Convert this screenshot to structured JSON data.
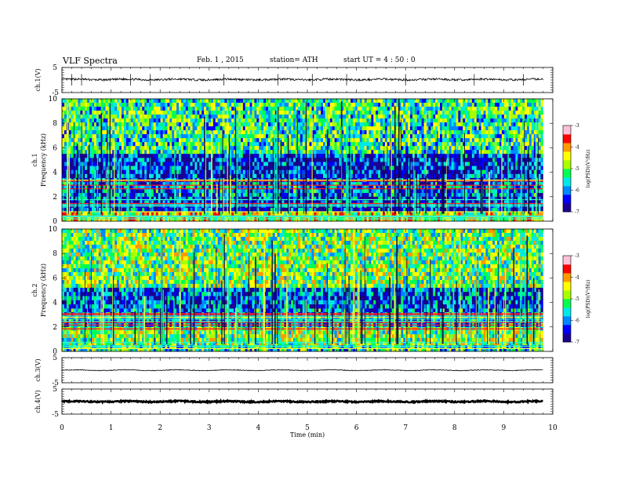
{
  "header": {
    "title": "VLF Spectra",
    "date": "Feb. 1 , 2015",
    "station": "station= ATH",
    "start_ut": "start  UT  =  4 : 50 : 0"
  },
  "colors": {
    "colormap": [
      "#1a0090",
      "#0000ff",
      "#0088ff",
      "#00e8e8",
      "#00ff50",
      "#a8ff00",
      "#ffff00",
      "#ff9900",
      "#ff0000",
      "#ffc0d8"
    ]
  },
  "chart_data": [
    {
      "type": "line",
      "panel": "ch.1",
      "ylabel": "ch.1(V)",
      "y_ticks": [
        "5",
        "-5"
      ],
      "ylim": [
        -5,
        5
      ],
      "series": [
        {
          "x_range": [
            0,
            9.8
          ],
          "baseline": 0.2,
          "noise_amplitude": 0.4,
          "spikes_min": [
            0.2,
            0.4,
            1.4,
            1.8,
            3.3,
            4.4,
            5.1,
            5.8,
            7.0,
            8.4,
            9.4
          ]
        }
      ]
    },
    {
      "type": "heatmap",
      "panel": "ch.1",
      "ylabel": "ch.1\nFrequency  (kHz)",
      "ylabel_line1": "ch.1",
      "ylabel_line2": "Frequency  (kHz)",
      "y_ticks": [
        "10",
        "8",
        "6",
        "4",
        "2",
        "0"
      ],
      "ylim": [
        0,
        10
      ],
      "xlim": [
        0,
        9.8
      ],
      "colorbar": {
        "label": "log(PSD)(V²/Hz)",
        "ticks": [
          "-3",
          "-4",
          "-5",
          "-6",
          "-7"
        ],
        "range": [
          -7,
          -3
        ]
      },
      "bands_khz": [
        {
          "from": 5.5,
          "to": 10,
          "level": -5.3
        },
        {
          "from": 3.2,
          "to": 5.5,
          "level": -6.4
        },
        {
          "from": 2.0,
          "to": 3.2,
          "level": -6.0
        },
        {
          "from": 0.8,
          "to": 2.0,
          "level": -6.3
        },
        {
          "from": 0.0,
          "to": 0.8,
          "level": -4.6
        }
      ]
    },
    {
      "type": "heatmap",
      "panel": "ch.2",
      "ylabel": "ch.2\nFrequency  (kHz)",
      "ylabel_line1": "ch.2",
      "ylabel_line2": "Frequency  (kHz)",
      "y_ticks": [
        "10",
        "8",
        "6",
        "4",
        "2",
        "0"
      ],
      "ylim": [
        0,
        10
      ],
      "xlim": [
        0,
        9.8
      ],
      "colorbar": {
        "label": "log(PSD)(V²/Hz)",
        "ticks": [
          "-3",
          "-4",
          "-5",
          "-6",
          "-7"
        ],
        "range": [
          -7,
          -3
        ]
      },
      "bands_khz": [
        {
          "from": 5.2,
          "to": 10,
          "level": -5.0
        },
        {
          "from": 3.5,
          "to": 5.2,
          "level": -6.2
        },
        {
          "from": 2.0,
          "to": 3.5,
          "level": -5.9
        },
        {
          "from": 0.5,
          "to": 2.0,
          "level": -4.9
        },
        {
          "from": 0.0,
          "to": 0.5,
          "level": -5.4
        }
      ]
    },
    {
      "type": "line",
      "panel": "ch.3",
      "ylabel": "ch.3(V)",
      "y_ticks": [
        "5",
        "-5"
      ],
      "ylim": [
        -5,
        5
      ],
      "series": [
        {
          "x_range": [
            0,
            9.8
          ],
          "baseline": 0.0,
          "noise_amplitude": 0.15
        }
      ]
    },
    {
      "type": "line",
      "panel": "ch.4",
      "ylabel": "ch.4(V)",
      "y_ticks": [
        "5",
        "-5"
      ],
      "ylim": [
        -5,
        5
      ],
      "series": [
        {
          "x_range": [
            0,
            9.8
          ],
          "baseline": 0.0,
          "noise_amplitude": 0.25
        }
      ]
    }
  ],
  "x_axis": {
    "label": "Time  (min)",
    "xlim": [
      0,
      10
    ],
    "ticks": [
      "0",
      "1",
      "2",
      "3",
      "4",
      "5",
      "6",
      "7",
      "8",
      "9",
      "10"
    ]
  }
}
